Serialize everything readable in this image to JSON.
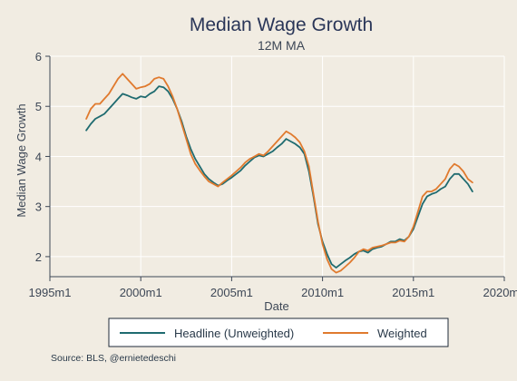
{
  "chart_data": {
    "type": "line",
    "title": "Median Wage Growth",
    "subtitle": "12M MA",
    "xlabel": "Date",
    "ylabel": "Median Wage Growth",
    "x_ticks": [
      "1995m1",
      "2000m1",
      "2005m1",
      "2010m1",
      "2015m1",
      "2020m1"
    ],
    "y_ticks": [
      "2",
      "3",
      "4",
      "5",
      "6"
    ],
    "xlim": [
      1995.0,
      2020.0
    ],
    "ylim": [
      1.6,
      6.0
    ],
    "grid": true,
    "legend_placement": "bottom",
    "source": "Source: BLS, @ernietedeschi",
    "series": [
      {
        "name": "Headline (Unweighted)",
        "color": "#1f6b70",
        "x": [
          1997.0,
          1997.25,
          1997.5,
          1997.75,
          1998.0,
          1998.25,
          1998.5,
          1998.75,
          1999.0,
          1999.25,
          1999.5,
          1999.75,
          2000.0,
          2000.25,
          2000.5,
          2000.75,
          2001.0,
          2001.25,
          2001.5,
          2001.75,
          2002.0,
          2002.25,
          2002.5,
          2002.75,
          2003.0,
          2003.25,
          2003.5,
          2003.75,
          2004.0,
          2004.25,
          2004.5,
          2004.75,
          2005.0,
          2005.25,
          2005.5,
          2005.75,
          2006.0,
          2006.25,
          2006.5,
          2006.75,
          2007.0,
          2007.25,
          2007.5,
          2007.75,
          2008.0,
          2008.25,
          2008.5,
          2008.75,
          2009.0,
          2009.25,
          2009.5,
          2009.75,
          2010.0,
          2010.25,
          2010.5,
          2010.75,
          2011.0,
          2011.25,
          2011.5,
          2011.75,
          2012.0,
          2012.25,
          2012.5,
          2012.75,
          2013.0,
          2013.25,
          2013.5,
          2013.75,
          2014.0,
          2014.25,
          2014.5,
          2014.75,
          2015.0,
          2015.25,
          2015.5,
          2015.75,
          2016.0,
          2016.25,
          2016.5,
          2016.75,
          2017.0,
          2017.25,
          2017.5,
          2017.75,
          2018.0,
          2018.25
        ],
        "values": [
          4.52,
          4.65,
          4.75,
          4.8,
          4.85,
          4.95,
          5.05,
          5.15,
          5.25,
          5.22,
          5.18,
          5.15,
          5.2,
          5.18,
          5.25,
          5.3,
          5.4,
          5.38,
          5.3,
          5.15,
          4.95,
          4.7,
          4.4,
          4.15,
          3.95,
          3.8,
          3.65,
          3.55,
          3.48,
          3.42,
          3.45,
          3.52,
          3.58,
          3.65,
          3.72,
          3.82,
          3.9,
          3.98,
          4.02,
          4.0,
          4.05,
          4.1,
          4.18,
          4.25,
          4.35,
          4.3,
          4.25,
          4.18,
          4.05,
          3.7,
          3.2,
          2.65,
          2.3,
          2.05,
          1.85,
          1.78,
          1.85,
          1.92,
          1.98,
          2.05,
          2.1,
          2.12,
          2.08,
          2.15,
          2.18,
          2.2,
          2.25,
          2.3,
          2.3,
          2.35,
          2.32,
          2.4,
          2.55,
          2.8,
          3.05,
          3.2,
          3.25,
          3.28,
          3.35,
          3.4,
          3.55,
          3.65,
          3.65,
          3.55,
          3.45,
          3.3
        ]
      },
      {
        "name": "Weighted",
        "color": "#e07a2e",
        "x": [
          1997.0,
          1997.25,
          1997.5,
          1997.75,
          1998.0,
          1998.25,
          1998.5,
          1998.75,
          1999.0,
          1999.25,
          1999.5,
          1999.75,
          2000.0,
          2000.25,
          2000.5,
          2000.75,
          2001.0,
          2001.25,
          2001.5,
          2001.75,
          2002.0,
          2002.25,
          2002.5,
          2002.75,
          2003.0,
          2003.25,
          2003.5,
          2003.75,
          2004.0,
          2004.25,
          2004.5,
          2004.75,
          2005.0,
          2005.25,
          2005.5,
          2005.75,
          2006.0,
          2006.25,
          2006.5,
          2006.75,
          2007.0,
          2007.25,
          2007.5,
          2007.75,
          2008.0,
          2008.25,
          2008.5,
          2008.75,
          2009.0,
          2009.25,
          2009.5,
          2009.75,
          2010.0,
          2010.25,
          2010.5,
          2010.75,
          2011.0,
          2011.25,
          2011.5,
          2011.75,
          2012.0,
          2012.25,
          2012.5,
          2012.75,
          2013.0,
          2013.25,
          2013.5,
          2013.75,
          2014.0,
          2014.25,
          2014.5,
          2014.75,
          2015.0,
          2015.25,
          2015.5,
          2015.75,
          2016.0,
          2016.25,
          2016.5,
          2016.75,
          2017.0,
          2017.25,
          2017.5,
          2017.75,
          2018.0,
          2018.25
        ],
        "values": [
          4.75,
          4.95,
          5.05,
          5.05,
          5.15,
          5.25,
          5.4,
          5.55,
          5.65,
          5.55,
          5.45,
          5.35,
          5.38,
          5.4,
          5.45,
          5.55,
          5.58,
          5.55,
          5.4,
          5.2,
          4.95,
          4.65,
          4.35,
          4.05,
          3.85,
          3.72,
          3.6,
          3.5,
          3.45,
          3.4,
          3.48,
          3.55,
          3.62,
          3.7,
          3.78,
          3.88,
          3.95,
          4.0,
          4.05,
          4.02,
          4.1,
          4.2,
          4.3,
          4.4,
          4.5,
          4.45,
          4.38,
          4.28,
          4.1,
          3.8,
          3.25,
          2.7,
          2.25,
          1.95,
          1.75,
          1.68,
          1.72,
          1.8,
          1.88,
          1.98,
          2.1,
          2.15,
          2.12,
          2.18,
          2.2,
          2.22,
          2.25,
          2.28,
          2.28,
          2.32,
          2.3,
          2.4,
          2.6,
          2.9,
          3.2,
          3.3,
          3.3,
          3.35,
          3.45,
          3.55,
          3.75,
          3.85,
          3.8,
          3.7,
          3.55,
          3.48
        ]
      }
    ]
  }
}
